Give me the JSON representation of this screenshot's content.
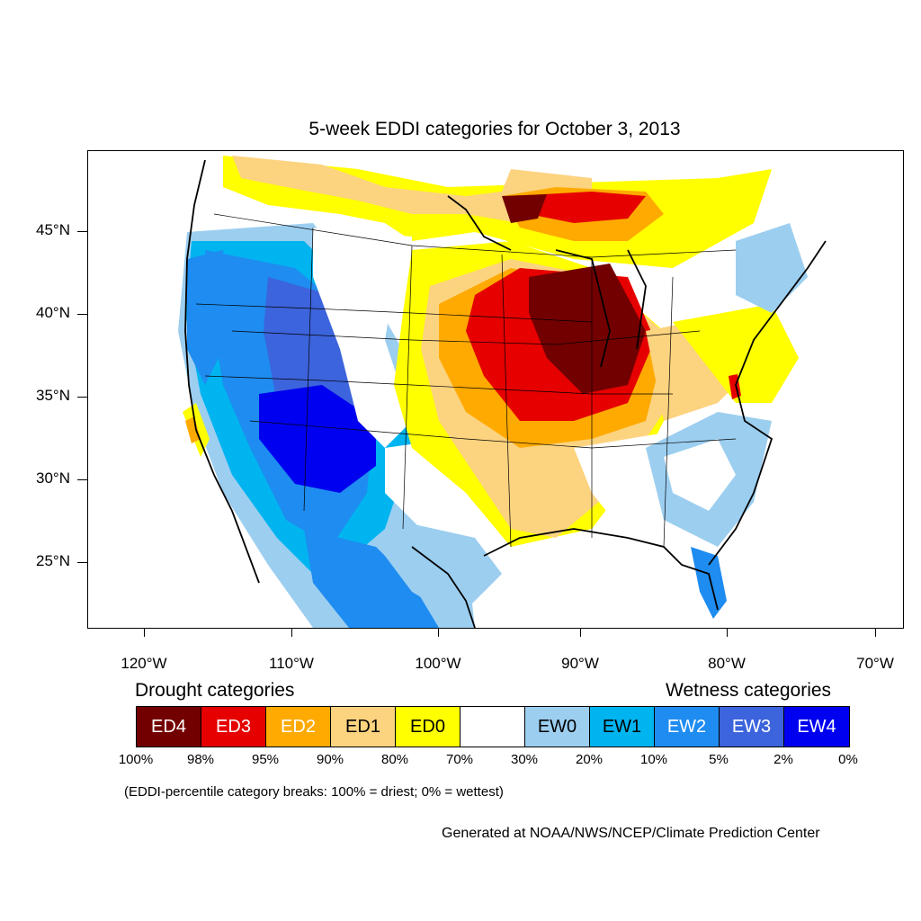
{
  "title": "5-week EDDI categories for October 3, 2013",
  "y_axis_labels": [
    "45°N",
    "40°N",
    "35°N",
    "30°N",
    "25°N"
  ],
  "x_axis_labels": [
    "120°W",
    "110°W",
    "100°W",
    "90°W",
    "80°W",
    "70°W"
  ],
  "legend": {
    "drought_heading": "Drought categories",
    "wetness_heading": "Wetness categories",
    "categories": [
      {
        "label": "ED4",
        "color": "#730000",
        "text_color": "#ffffff"
      },
      {
        "label": "ED3",
        "color": "#e60000",
        "text_color": "#ffffff"
      },
      {
        "label": "ED2",
        "color": "#ffaa00",
        "text_color": "#ffffff"
      },
      {
        "label": "ED1",
        "color": "#fcd37f",
        "text_color": "#000000"
      },
      {
        "label": "ED0",
        "color": "#ffff00",
        "text_color": "#000000"
      },
      {
        "label": "",
        "color": "#ffffff",
        "text_color": "#000000"
      },
      {
        "label": "EW0",
        "color": "#9ccef0",
        "text_color": "#000000"
      },
      {
        "label": "EW1",
        "color": "#00b4f0",
        "text_color": "#000000"
      },
      {
        "label": "EW2",
        "color": "#1e8cf0",
        "text_color": "#ffffff"
      },
      {
        "label": "EW3",
        "color": "#3c64dc",
        "text_color": "#ffffff"
      },
      {
        "label": "EW4",
        "color": "#0000f0",
        "text_color": "#ffffff"
      }
    ],
    "percent_breaks": [
      "100%",
      "98%",
      "95%",
      "90%",
      "80%",
      "70%",
      "30%",
      "20%",
      "10%",
      "5%",
      "2%",
      "0%"
    ]
  },
  "note": "(EDDI-percentile category breaks: 100% = driest; 0% = wettest)",
  "credit": "Generated at NOAA/NWS/NCEP/Climate Prediction Center"
}
